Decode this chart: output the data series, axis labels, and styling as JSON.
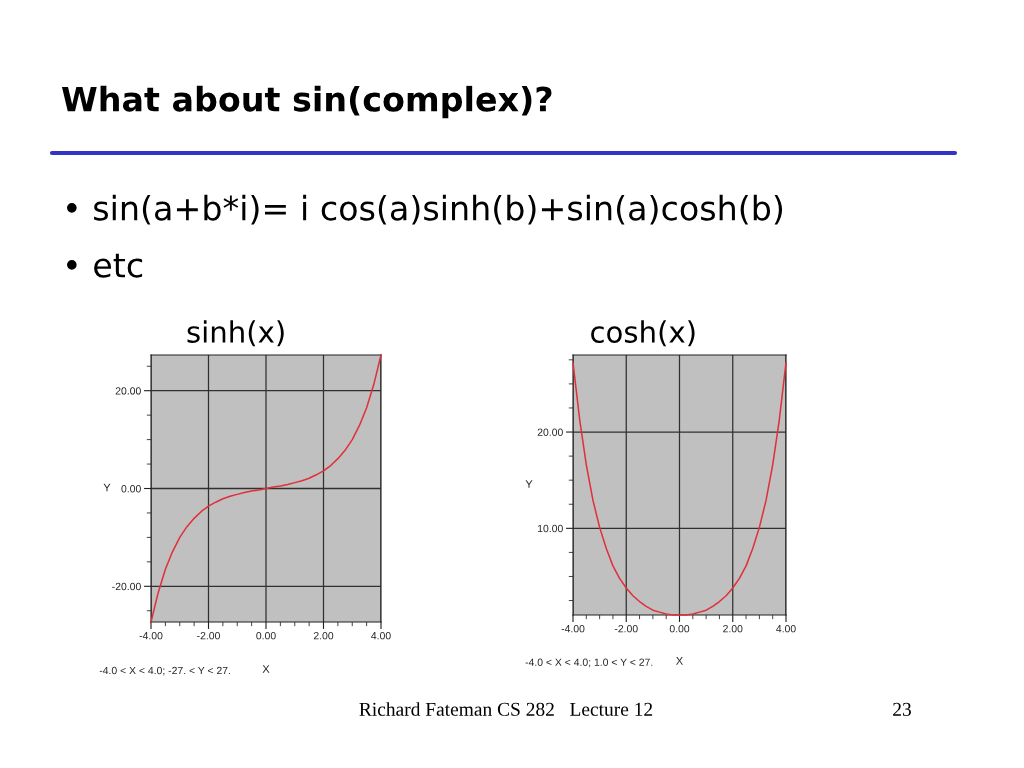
{
  "chart_data": [
    {
      "type": "other",
      "title": "What about sin(complex)?",
      "annotations": [
        "• sin(a+b*i)= i cos(a)sinh(b)+sin(a)cosh(b)",
        "• etc"
      ]
    },
    {
      "type": "line",
      "title": "sinh(x)",
      "xlabel": "X",
      "ylabel": "Y",
      "annotations": [
        "-4.0 < X < 4.0; -27. < Y < 27."
      ],
      "x": [
        -4,
        -3.75,
        -3.5,
        -3.25,
        -3,
        -2.75,
        -2.5,
        -2.25,
        -2,
        -1.75,
        -1.5,
        -1.25,
        -1,
        -0.75,
        -0.5,
        -0.25,
        0,
        0.25,
        0.5,
        0.75,
        1,
        1.25,
        1.5,
        1.75,
        2,
        2.25,
        2.5,
        2.75,
        3,
        3.25,
        3.5,
        3.75,
        4
      ],
      "series": [
        {
          "color": "#e0303a",
          "values": [
            -27.3,
            -21.3,
            -16.5,
            -12.9,
            -10.0,
            -7.8,
            -6.1,
            -4.7,
            -3.6,
            -2.8,
            -2.1,
            -1.6,
            -1.2,
            -0.8,
            -0.5,
            -0.3,
            0,
            0.3,
            0.5,
            0.8,
            1.2,
            1.6,
            2.1,
            2.8,
            3.6,
            4.7,
            6.1,
            7.8,
            10.0,
            12.9,
            16.5,
            21.3,
            27.3
          ]
        }
      ],
      "xlim": [
        -4,
        4
      ],
      "ylim": [
        -27.3,
        27.3
      ],
      "xticks": [
        {
          "value": -4,
          "label": "-4.00"
        },
        {
          "value": -3.5,
          "label": null
        },
        {
          "value": -3,
          "label": null
        },
        {
          "value": -2.5,
          "label": null
        },
        {
          "value": -2,
          "label": "-2.00"
        },
        {
          "value": -1.5,
          "label": null
        },
        {
          "value": -1,
          "label": null
        },
        {
          "value": -0.5,
          "label": null
        },
        {
          "value": 0,
          "label": "0.00"
        },
        {
          "value": 0.5,
          "label": null
        },
        {
          "value": 1,
          "label": null
        },
        {
          "value": 1.5,
          "label": null
        },
        {
          "value": 2,
          "label": "2.00"
        },
        {
          "value": 2.5,
          "label": null
        },
        {
          "value": 3,
          "label": null
        },
        {
          "value": 3.5,
          "label": null
        },
        {
          "value": 4,
          "label": "4.00"
        }
      ],
      "yticks": [
        {
          "value": -25,
          "label": null
        },
        {
          "value": -20,
          "label": "-20.00"
        },
        {
          "value": -15,
          "label": null
        },
        {
          "value": -10,
          "label": null
        },
        {
          "value": -5,
          "label": null
        },
        {
          "value": 0,
          "label": "0.00"
        },
        {
          "value": 5,
          "label": null
        },
        {
          "value": 10,
          "label": null
        },
        {
          "value": 15,
          "label": null
        },
        {
          "value": 20,
          "label": "20.00"
        },
        {
          "value": 25,
          "label": null
        }
      ],
      "grid": true,
      "line_style": "solid"
    },
    {
      "type": "line",
      "title": "cosh(x)",
      "xlabel": "X",
      "ylabel": "Y",
      "annotations": [
        "-4.0 < X < 4.0; 1.0 < Y < 27."
      ],
      "x": [
        -4,
        -3.75,
        -3.5,
        -3.25,
        -3,
        -2.75,
        -2.5,
        -2.25,
        -2,
        -1.75,
        -1.5,
        -1.25,
        -1,
        -0.75,
        -0.5,
        -0.25,
        0,
        0.25,
        0.5,
        0.75,
        1,
        1.25,
        1.5,
        1.75,
        2,
        2.25,
        2.5,
        2.75,
        3,
        3.25,
        3.5,
        3.75,
        4
      ],
      "series": [
        {
          "color": "#e0303a",
          "values": [
            27.2,
            21.3,
            16.6,
            12.9,
            10.1,
            7.9,
            6.1,
            4.8,
            3.8,
            3.0,
            2.4,
            1.9,
            1.5,
            1.3,
            1.1,
            1.0,
            1.0,
            1.0,
            1.1,
            1.3,
            1.5,
            1.9,
            2.4,
            3.0,
            3.8,
            4.8,
            6.1,
            7.9,
            10.1,
            12.9,
            16.6,
            21.3,
            27.2
          ]
        }
      ],
      "xlim": [
        -4,
        4
      ],
      "ylim": [
        1,
        28
      ],
      "xticks": [
        {
          "value": -4,
          "label": "-4.00"
        },
        {
          "value": -3.5,
          "label": null
        },
        {
          "value": -3,
          "label": null
        },
        {
          "value": -2.5,
          "label": null
        },
        {
          "value": -2,
          "label": "-2.00"
        },
        {
          "value": -1.5,
          "label": null
        },
        {
          "value": -1,
          "label": null
        },
        {
          "value": -0.5,
          "label": null
        },
        {
          "value": 0,
          "label": "0.00"
        },
        {
          "value": 0.5,
          "label": null
        },
        {
          "value": 1,
          "label": null
        },
        {
          "value": 1.5,
          "label": null
        },
        {
          "value": 2,
          "label": "2.00"
        },
        {
          "value": 2.5,
          "label": null
        },
        {
          "value": 3,
          "label": null
        },
        {
          "value": 3.5,
          "label": null
        },
        {
          "value": 4,
          "label": "4.00"
        }
      ],
      "yticks": [
        {
          "value": 2.5,
          "label": null
        },
        {
          "value": 5,
          "label": null
        },
        {
          "value": 7.5,
          "label": null
        },
        {
          "value": 10,
          "label": "10.00"
        },
        {
          "value": 12.5,
          "label": null
        },
        {
          "value": 15,
          "label": null
        },
        {
          "value": 17.5,
          "label": null
        },
        {
          "value": 20,
          "label": "20.00"
        },
        {
          "value": 22.5,
          "label": null
        },
        {
          "value": 25,
          "label": null
        },
        {
          "value": 27.5,
          "label": null
        }
      ],
      "grid": true,
      "line_style": "solid"
    },
    {
      "type": "other",
      "annotations": [
        "Richard Fateman CS 282   Lecture 12",
        "23"
      ]
    }
  ]
}
